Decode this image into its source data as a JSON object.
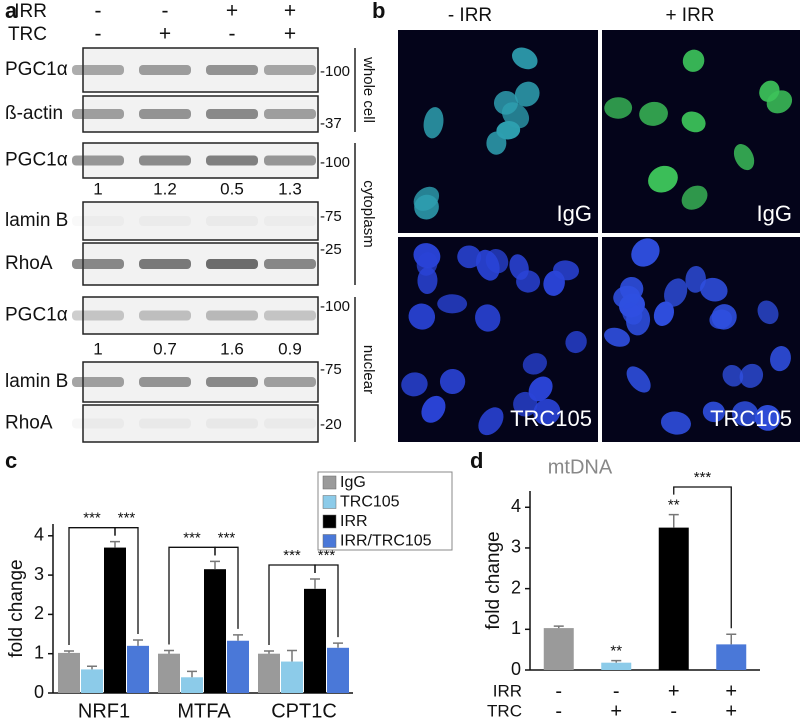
{
  "panel_labels": [
    "a",
    "b",
    "c",
    "d"
  ],
  "panel_a": {
    "conditions": [
      {
        "name": "IRR",
        "signs": [
          "-",
          "-",
          "+",
          "+"
        ]
      },
      {
        "name": "TRC",
        "signs": [
          "-",
          "+",
          "-",
          "+"
        ]
      }
    ],
    "blots": [
      {
        "label": "PGC1α",
        "marker": "-100"
      },
      {
        "label": "ß-actin",
        "marker": "-37"
      },
      {
        "label": "PGC1α",
        "marker": "-100"
      },
      {
        "label": "lamin B",
        "marker": "-75"
      },
      {
        "label": "RhoA",
        "marker": "-25"
      },
      {
        "label": "PGC1α",
        "marker": "-100"
      },
      {
        "label": "lamin B",
        "marker": "-75"
      },
      {
        "label": "RhoA",
        "marker": "-20"
      }
    ],
    "quantifications": [
      [
        1,
        1.2,
        0.5,
        1.3
      ],
      [
        1,
        0.7,
        1.6,
        0.9
      ]
    ],
    "fractions": [
      "whole cell",
      "cytoplasm",
      "nuclear"
    ]
  },
  "panel_b": {
    "columns": [
      "- IRR",
      "+ IRR"
    ],
    "image_labels": [
      "IgG",
      "IgG",
      "TRC105",
      "TRC105"
    ]
  },
  "chart_data": [
    {
      "type": "bar",
      "y_label": "fold change",
      "categories": [
        "NRF1",
        "MTFA",
        "CPT1C"
      ],
      "series": [
        {
          "name": "IgG",
          "color": "#9a9a9a",
          "values": [
            1.02,
            1.0,
            1.0
          ],
          "errors": [
            0.05,
            0.08,
            0.07
          ]
        },
        {
          "name": "TRC105",
          "color": "#8ccbe9",
          "values": [
            0.6,
            0.4,
            0.8
          ],
          "errors": [
            0.08,
            0.15,
            0.28
          ]
        },
        {
          "name": "IRR",
          "color": "#000000",
          "values": [
            3.7,
            3.15,
            2.65
          ],
          "errors": [
            0.15,
            0.2,
            0.25
          ]
        },
        {
          "name": "IRR/TRC105",
          "color": "#4a78d8",
          "values": [
            1.2,
            1.33,
            1.15
          ],
          "errors": [
            0.15,
            0.15,
            0.12
          ]
        }
      ],
      "annotations": [
        [
          "***",
          "***"
        ],
        [
          "***",
          "***"
        ],
        [
          "***",
          "***"
        ]
      ],
      "ylim": [
        0,
        4.3
      ],
      "yticks": [
        0,
        1,
        2,
        3,
        4
      ]
    },
    {
      "type": "bar",
      "title": "mtDNA",
      "y_label": "fold change",
      "category_rows": [
        {
          "name": "IRR",
          "labels": [
            "-",
            "-",
            "+",
            "+"
          ]
        },
        {
          "name": "TRC",
          "labels": [
            "-",
            "+",
            "-",
            "+"
          ]
        }
      ],
      "values": [
        1.03,
        0.18,
        3.5,
        0.63
      ],
      "errors": [
        0.05,
        0.05,
        0.32,
        0.25
      ],
      "colors": [
        "#9a9a9a",
        "#8ccbe9",
        "#000000",
        "#4a78d8"
      ],
      "star_labels": [
        null,
        "**",
        "**",
        null
      ],
      "bracket_label": "***",
      "ylim": [
        0,
        4.4
      ],
      "yticks": [
        0,
        1,
        2,
        3,
        4
      ]
    }
  ]
}
